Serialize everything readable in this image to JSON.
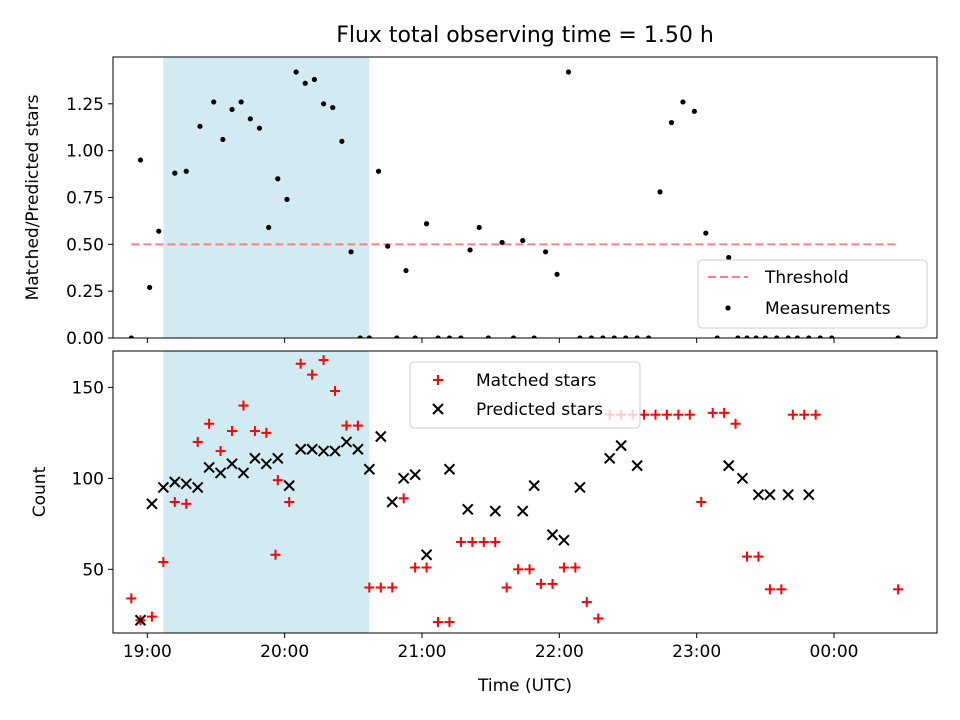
{
  "chart_data": [
    {
      "type": "scatter",
      "title": "Flux total observing time = 1.50 h",
      "xlabel": "",
      "ylabel": "Matched/Predicted stars",
      "xlim": [
        "18:45",
        "00:45"
      ],
      "ylim": [
        0,
        1.5
      ],
      "yticks": [
        0.0,
        0.25,
        0.5,
        0.75,
        1.0,
        1.25
      ],
      "ytick_labels": [
        "0.00",
        "0.25",
        "0.50",
        "0.75",
        "1.00",
        "1.25"
      ],
      "highlight_span": [
        "19:07",
        "20:37"
      ],
      "legend": {
        "position": "lower right",
        "entries": [
          "Threshold",
          "Measurements"
        ]
      },
      "series": [
        {
          "name": "Threshold",
          "style": "dashed-line",
          "color": "#ff7f7f",
          "x": [
            "18:53",
            "00:28"
          ],
          "y": [
            0.5,
            0.5
          ]
        },
        {
          "name": "Measurements",
          "style": "dot",
          "color": "#000000",
          "x": [
            "18:53",
            "18:57",
            "19:01",
            "19:05",
            "19:12",
            "19:17",
            "19:23",
            "19:29",
            "19:33",
            "19:37",
            "19:41",
            "19:45",
            "19:49",
            "19:53",
            "19:57",
            "20:01",
            "20:05",
            "20:09",
            "20:13",
            "20:17",
            "20:21",
            "20:25",
            "20:29",
            "20:33",
            "20:37",
            "20:41",
            "20:45",
            "20:49",
            "20:53",
            "20:57",
            "21:02",
            "21:07",
            "21:12",
            "21:17",
            "21:21",
            "21:25",
            "21:29",
            "21:35",
            "21:40",
            "21:44",
            "21:49",
            "21:54",
            "21:59",
            "22:04",
            "22:09",
            "22:14",
            "22:19",
            "22:24",
            "22:29",
            "22:34",
            "22:39",
            "22:44",
            "22:49",
            "22:54",
            "22:59",
            "23:04",
            "23:09",
            "23:14",
            "23:18",
            "23:22",
            "23:26",
            "23:30",
            "23:35",
            "23:40",
            "23:44",
            "23:49",
            "23:54",
            "23:59",
            "00:28"
          ],
          "y": [
            0.0,
            0.95,
            0.27,
            0.57,
            0.88,
            0.89,
            1.13,
            1.26,
            1.06,
            1.22,
            1.26,
            1.17,
            1.12,
            0.59,
            0.85,
            0.74,
            1.42,
            1.36,
            1.38,
            1.25,
            1.23,
            1.05,
            0.46,
            0.0,
            0.0,
            0.89,
            0.49,
            0.0,
            0.36,
            0.0,
            0.61,
            0.0,
            0.0,
            0.0,
            0.47,
            0.59,
            0.0,
            0.51,
            0.0,
            0.52,
            0.0,
            0.46,
            0.34,
            1.42,
            0.0,
            0.0,
            0.0,
            0.0,
            0.0,
            0.0,
            0.0,
            0.78,
            1.15,
            1.26,
            1.21,
            0.56,
            0.0,
            0.43,
            0.0,
            0.0,
            0.0,
            0.0,
            0.0,
            0.0,
            0.0,
            0.0,
            0.0,
            0.0,
            0.0
          ]
        }
      ]
    },
    {
      "type": "scatter",
      "title": "",
      "xlabel": "Time (UTC)",
      "ylabel": "Count",
      "xlim": [
        "18:45",
        "00:45"
      ],
      "ylim": [
        15,
        170
      ],
      "yticks": [
        50,
        100,
        150
      ],
      "ytick_labels": [
        "50",
        "100",
        "150"
      ],
      "xticks": [
        "19:00",
        "20:00",
        "21:00",
        "22:00",
        "23:00",
        "00:00"
      ],
      "xtick_labels": [
        "19:00",
        "20:00",
        "21:00",
        "22:00",
        "23:00",
        "00:00"
      ],
      "highlight_span": [
        "19:07",
        "20:37"
      ],
      "legend": {
        "position": "upper center",
        "entries": [
          "Matched stars",
          "Predicted stars"
        ]
      },
      "series": [
        {
          "name": "Matched stars",
          "marker": "plus",
          "color": "#ff0000",
          "x": [
            "18:53",
            "18:57",
            "19:02",
            "19:07",
            "19:12",
            "19:17",
            "19:22",
            "19:27",
            "19:32",
            "19:37",
            "19:42",
            "19:47",
            "19:52",
            "19:56",
            "19:57",
            "20:02",
            "20:07",
            "20:12",
            "20:17",
            "20:22",
            "20:27",
            "20:32",
            "20:37",
            "20:42",
            "20:47",
            "20:52",
            "20:57",
            "21:02",
            "21:07",
            "21:12",
            "21:17",
            "21:22",
            "21:27",
            "21:32",
            "21:37",
            "21:42",
            "21:47",
            "21:52",
            "21:57",
            "22:02",
            "22:07",
            "22:12",
            "22:17",
            "22:22",
            "22:27",
            "22:32",
            "22:37",
            "22:42",
            "22:47",
            "22:52",
            "22:57",
            "23:02",
            "23:07",
            "23:12",
            "23:17",
            "23:22",
            "23:27",
            "23:32",
            "23:37",
            "23:42",
            "23:47",
            "23:52",
            "00:28"
          ],
          "y": [
            34,
            22,
            24,
            54,
            87,
            86,
            120,
            130,
            115,
            126,
            140,
            126,
            125,
            58,
            99,
            87,
            163,
            157,
            165,
            148,
            129,
            129,
            40,
            40,
            40,
            89,
            51,
            51,
            21,
            21,
            65,
            65,
            65,
            65,
            40,
            50,
            50,
            42,
            42,
            51,
            51,
            32,
            23,
            135,
            135,
            135,
            135,
            135,
            135,
            135,
            135,
            87,
            136,
            136,
            130,
            57,
            57,
            39,
            39,
            135,
            135,
            135,
            39
          ]
        },
        {
          "name": "Predicted stars",
          "marker": "x",
          "color": "#000000",
          "x": [
            "18:57",
            "19:02",
            "19:07",
            "19:12",
            "19:17",
            "19:22",
            "19:27",
            "19:32",
            "19:37",
            "19:42",
            "19:47",
            "19:52",
            "19:57",
            "20:02",
            "20:07",
            "20:12",
            "20:17",
            "20:22",
            "20:27",
            "20:32",
            "20:37",
            "20:42",
            "20:47",
            "20:52",
            "20:57",
            "21:02",
            "21:12",
            "21:20",
            "21:32",
            "21:44",
            "21:49",
            "21:57",
            "22:02",
            "22:09",
            "22:22",
            "22:27",
            "22:34",
            "23:14",
            "23:20",
            "23:27",
            "23:32",
            "23:40",
            "23:49"
          ],
          "y": [
            22,
            86,
            95,
            98,
            97,
            95,
            106,
            103,
            108,
            103,
            111,
            108,
            111,
            96,
            116,
            116,
            115,
            115,
            120,
            116,
            105,
            123,
            87,
            100,
            102,
            58,
            105,
            83,
            82,
            82,
            96,
            69,
            66,
            95,
            111,
            118,
            107,
            107,
            100,
            91,
            91,
            91,
            91
          ]
        }
      ]
    }
  ]
}
